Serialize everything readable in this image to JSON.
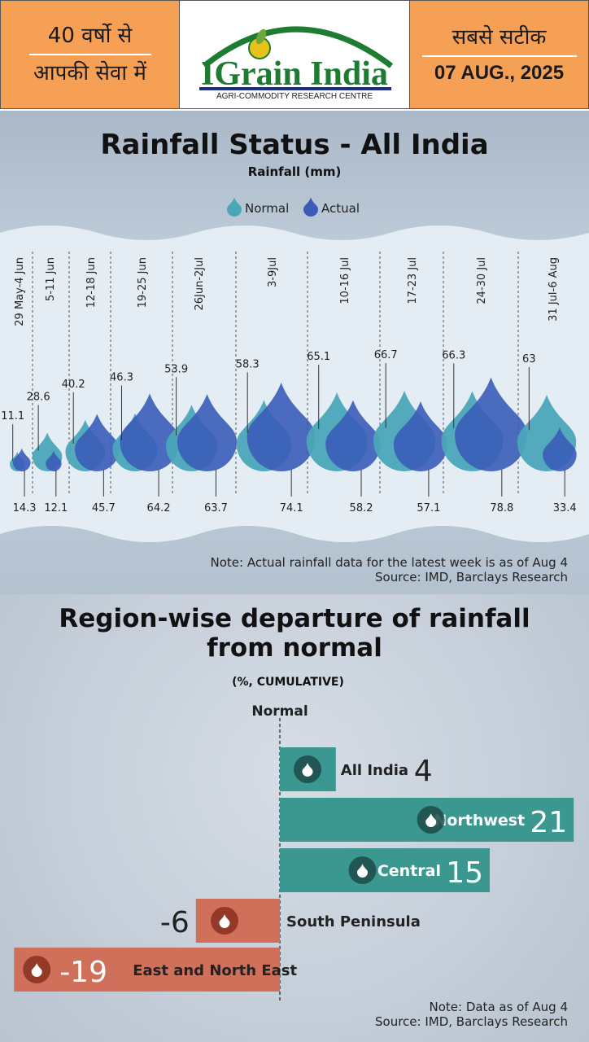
{
  "header": {
    "left_line1": "40 वर्षो से",
    "left_line2": "आपकी सेवा में",
    "brand": "IGrain India",
    "brand_sub": "AGRI-COMMODITY RESEARCH CENTRE",
    "right_line1": "सबसे सटीक",
    "date": "07 AUG., 2025",
    "colors": {
      "orange": "#f6a055",
      "green": "#1e7c32",
      "navy": "#1a2f8a"
    }
  },
  "chart_data": [
    {
      "type": "bar",
      "title": "Rainfall Status - All India",
      "subtitle": "Rainfall (mm)",
      "legend_placement": "top-center",
      "categories": [
        "29 May-4 Jun",
        "5-11 Jun",
        "12-18 Jun",
        "19-25 Jun",
        "26Jun-2Jul",
        "3-9Jul",
        "10-16 Jul",
        "17-23 Jul",
        "24-30 Jul",
        "31 Jul-6 Aug"
      ],
      "series": [
        {
          "name": "Normal",
          "color": "#4aa7b8",
          "values": [
            11.1,
            28.6,
            40.2,
            46.3,
            53.9,
            58.3,
            65.1,
            66.7,
            66.3,
            63
          ]
        },
        {
          "name": "Actual",
          "color": "#3a5cb8",
          "values": [
            14.3,
            12.1,
            45.7,
            64.2,
            63.7,
            74.1,
            58.2,
            57.1,
            78.8,
            33.4
          ]
        }
      ],
      "note": "Note: Actual rainfall data for the latest week is as of Aug 4",
      "source": "Source: IMD, Barclays Research"
    },
    {
      "type": "bar",
      "title": "Region-wise departure of rainfall from normal",
      "subtitle": "(%, CUMULATIVE)",
      "baseline_label": "Normal",
      "categories": [
        "All India",
        "Northwest",
        "Central",
        "South Peninsula",
        "East and North East"
      ],
      "values": [
        4,
        21,
        15,
        -6,
        -19
      ],
      "positive_color": "#3a9890",
      "negative_color": "#d0705a",
      "note": "Note: Data as of Aug 4",
      "source": "Source: IMD, Barclays Research"
    }
  ]
}
